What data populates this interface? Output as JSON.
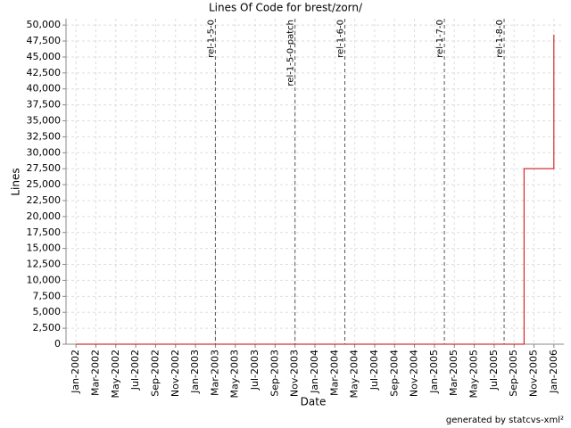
{
  "chart_data": {
    "type": "line",
    "title": "Lines Of Code for brest/zorn/",
    "x_label": "Date",
    "y_label": "Lines",
    "footer": "generated by statcvs-xml²",
    "x": [
      "Jan-2002",
      "Oct-2005",
      "Oct-2005",
      "Oct-2005",
      "Oct-2005",
      "Jan-2006",
      "Jan-2006"
    ],
    "series": [
      {
        "name": "Lines",
        "color": "#cc0000",
        "values": [
          0,
          0,
          18000,
          23500,
          27500,
          27500,
          48500
        ]
      }
    ],
    "xlim": [
      "Dec-2001",
      "Feb-2006"
    ],
    "xticks": [
      "Jan-2002",
      "Mar-2002",
      "May-2002",
      "Jul-2002",
      "Sep-2002",
      "Nov-2002",
      "Jan-2003",
      "Mar-2003",
      "May-2003",
      "Jul-2003",
      "Sep-2003",
      "Nov-2003",
      "Jan-2004",
      "Mar-2004",
      "May-2004",
      "Jul-2004",
      "Sep-2004",
      "Nov-2004",
      "Jan-2005",
      "Mar-2005",
      "May-2005",
      "Jul-2005",
      "Sep-2005",
      "Nov-2005",
      "Jan-2006"
    ],
    "ylim": [
      0,
      51000
    ],
    "yticks": [
      {
        "value": 0,
        "label": "0"
      },
      {
        "value": 2500,
        "label": "2,500"
      },
      {
        "value": 5000,
        "label": "5,000"
      },
      {
        "value": 7500,
        "label": "7,500"
      },
      {
        "value": 10000,
        "label": "10,000"
      },
      {
        "value": 12500,
        "label": "12,500"
      },
      {
        "value": 15000,
        "label": "15,000"
      },
      {
        "value": 17500,
        "label": "17,500"
      },
      {
        "value": 20000,
        "label": "20,000"
      },
      {
        "value": 22500,
        "label": "22,500"
      },
      {
        "value": 25000,
        "label": "25,000"
      },
      {
        "value": 27500,
        "label": "27,500"
      },
      {
        "value": 30000,
        "label": "30,000"
      },
      {
        "value": 32500,
        "label": "32,500"
      },
      {
        "value": 35000,
        "label": "35,000"
      },
      {
        "value": 37500,
        "label": "37,500"
      },
      {
        "value": 40000,
        "label": "40,000"
      },
      {
        "value": 42500,
        "label": "42,500"
      },
      {
        "value": 45000,
        "label": "45,000"
      },
      {
        "value": 47500,
        "label": "47,500"
      },
      {
        "value": 50000,
        "label": "50,000"
      }
    ],
    "grid": true,
    "annotations": [
      {
        "label": "rel-1-5-0",
        "x": "Mar-2003"
      },
      {
        "label": "rel-1-5-0-patch",
        "x": "Nov-2003"
      },
      {
        "label": "rel-1-6-0",
        "x": "Apr-2004"
      },
      {
        "label": "rel-1-7-0",
        "x": "Feb-2005"
      },
      {
        "label": "rel-1-8-0",
        "x": "Aug-2005"
      }
    ]
  }
}
